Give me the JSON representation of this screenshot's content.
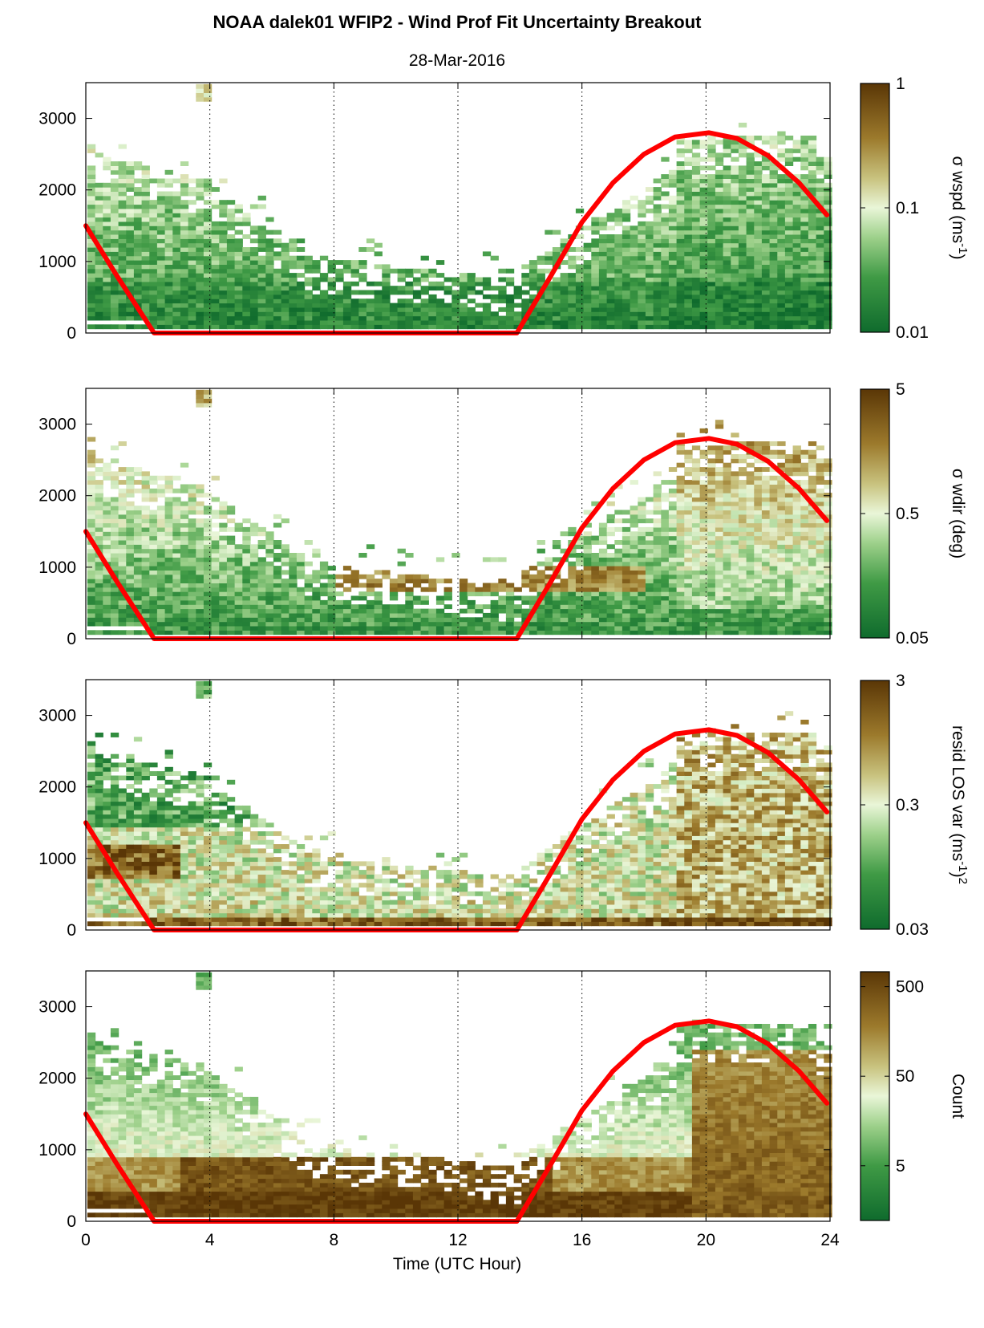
{
  "title": "NOAA dalek01 WFIP2 - Wind Prof Fit Uncertainty Breakout",
  "subtitle": "28-Mar-2016",
  "xlabel": "Time (UTC Hour)",
  "colors": {
    "overlay_line": "#ff0000",
    "cmap_low": "#0f6b2d",
    "cmap_mid": "#e9f6d8",
    "cmap_high": "#5a3606"
  },
  "chart_data": [
    {
      "type": "heatmap",
      "colorbar_label": "σ wspd (ms-1)",
      "colorbar_label_main": "σ wspd (ms",
      "colorbar_label_sup": "-1",
      "colorbar_label_tail": ")",
      "colorbar_ticks": [
        "0.01",
        "0.1",
        "1"
      ],
      "colorbar_scale": "log",
      "xlim": [
        0,
        24
      ],
      "ylim": [
        0,
        3500
      ],
      "xticks": [
        "0",
        "4",
        "8",
        "12",
        "16",
        "20",
        "24"
      ],
      "yticks": [
        "0",
        "1000",
        "2000",
        "3000"
      ],
      "vertical_gridlines_at": [
        4,
        8,
        12,
        16,
        20
      ],
      "grid": "dotted-vertical",
      "overlay_curve": {
        "color": "red",
        "x": [
          0,
          1,
          2.2,
          13.9,
          15,
          16,
          17,
          18,
          19,
          20.1,
          21,
          22,
          23,
          23.9
        ],
        "y": [
          1500,
          800,
          0,
          0,
          800,
          1550,
          2100,
          2500,
          2740,
          2800,
          2720,
          2480,
          2100,
          1650
        ]
      }
    },
    {
      "type": "heatmap",
      "colorbar_label": "σ wdir (deg)",
      "colorbar_label_main": "σ wdir (deg)",
      "colorbar_label_sup": "",
      "colorbar_label_tail": "",
      "colorbar_ticks": [
        "0.05",
        "0.5",
        "5"
      ],
      "colorbar_scale": "log",
      "xlim": [
        0,
        24
      ],
      "ylim": [
        0,
        3500
      ],
      "xticks": [
        "0",
        "4",
        "8",
        "12",
        "16",
        "20",
        "24"
      ],
      "yticks": [
        "0",
        "1000",
        "2000",
        "3000"
      ],
      "vertical_gridlines_at": [
        4,
        8,
        12,
        16,
        20
      ],
      "grid": "dotted-vertical",
      "overlay_curve": {
        "color": "red",
        "x": [
          0,
          1,
          2.2,
          13.9,
          15,
          16,
          17,
          18,
          19,
          20.1,
          21,
          22,
          23,
          23.9
        ],
        "y": [
          1500,
          800,
          0,
          0,
          800,
          1550,
          2100,
          2500,
          2740,
          2800,
          2720,
          2480,
          2100,
          1650
        ]
      }
    },
    {
      "type": "heatmap",
      "colorbar_label": "resid LOS var (ms-1)2",
      "colorbar_label_main": "resid LOS var (ms",
      "colorbar_label_sup": "-1",
      "colorbar_label_tail": ")",
      "colorbar_label_sup2": "2",
      "colorbar_ticks": [
        "0.03",
        "0.3",
        "3"
      ],
      "colorbar_scale": "log",
      "xlim": [
        0,
        24
      ],
      "ylim": [
        0,
        3500
      ],
      "xticks": [
        "0",
        "4",
        "8",
        "12",
        "16",
        "20",
        "24"
      ],
      "yticks": [
        "0",
        "1000",
        "2000",
        "3000"
      ],
      "vertical_gridlines_at": [
        4,
        8,
        12,
        16,
        20
      ],
      "grid": "dotted-vertical",
      "overlay_curve": {
        "color": "red",
        "x": [
          0,
          1,
          2.2,
          13.9,
          15,
          16,
          17,
          18,
          19,
          20.1,
          21,
          22,
          23,
          23.9
        ],
        "y": [
          1500,
          800,
          0,
          0,
          800,
          1550,
          2100,
          2500,
          2740,
          2800,
          2720,
          2480,
          2100,
          1650
        ]
      }
    },
    {
      "type": "heatmap",
      "colorbar_label": "Count",
      "colorbar_label_main": "Count",
      "colorbar_label_sup": "",
      "colorbar_label_tail": "",
      "colorbar_ticks": [
        "5",
        "50",
        "500"
      ],
      "colorbar_scale": "log",
      "xlim": [
        0,
        24
      ],
      "ylim": [
        0,
        3500
      ],
      "xticks": [
        "0",
        "4",
        "8",
        "12",
        "16",
        "20",
        "24"
      ],
      "yticks": [
        "0",
        "1000",
        "2000",
        "3000"
      ],
      "vertical_gridlines_at": [
        4,
        8,
        12,
        16,
        20
      ],
      "grid": "dotted-vertical",
      "overlay_curve": {
        "color": "red",
        "x": [
          0,
          1,
          2.2,
          13.9,
          15,
          16,
          17,
          18,
          19,
          20.1,
          21,
          22,
          23,
          23.9
        ],
        "y": [
          1500,
          800,
          0,
          0,
          800,
          1550,
          2100,
          2500,
          2740,
          2800,
          2720,
          2480,
          2100,
          1650
        ]
      }
    }
  ]
}
